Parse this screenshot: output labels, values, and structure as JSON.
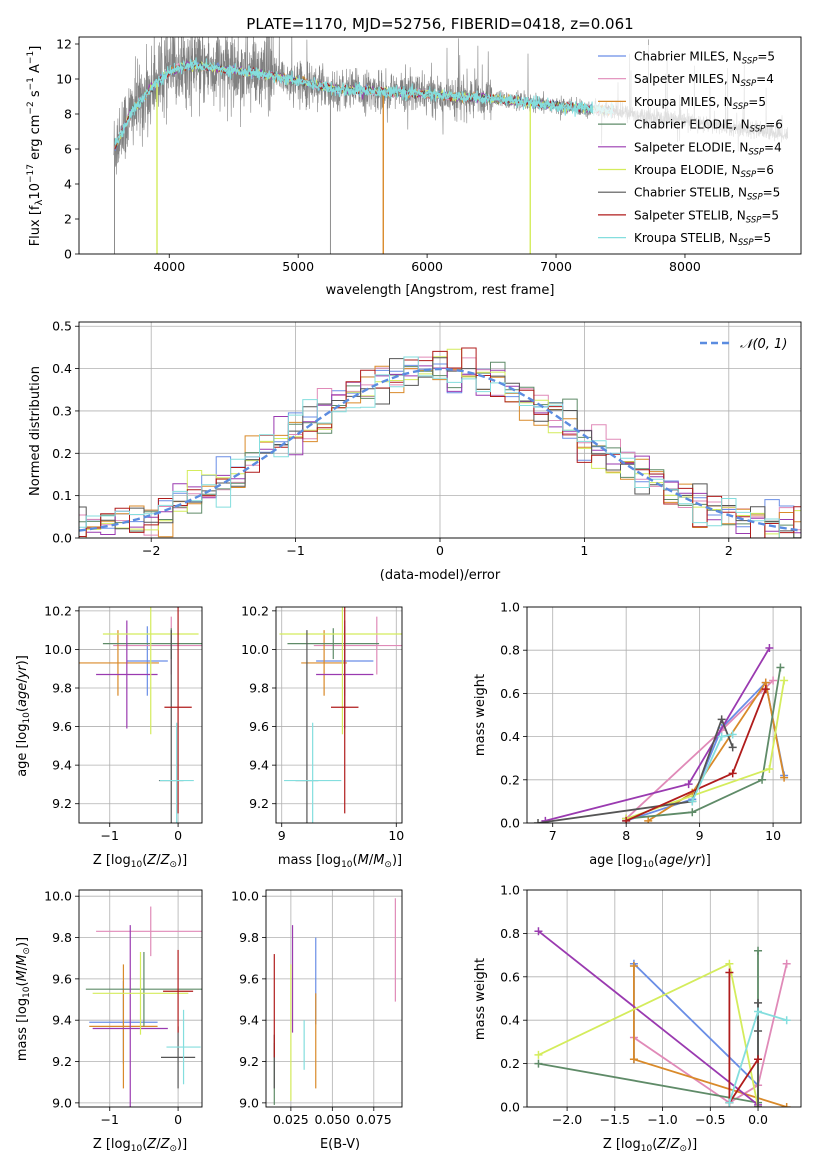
{
  "colors": [
    "#6a8ee6",
    "#e08ab8",
    "#d98a2a",
    "#5f8b68",
    "#9a3ab0",
    "#d4ec5c",
    "#555555",
    "#b01c1c",
    "#84dede"
  ],
  "chart_data": [
    {
      "id": "spectrum",
      "type": "line",
      "title": "PLATE=1170, MJD=52756, FIBERID=0418, z=0.061",
      "xlabel": "wavelength [Angstrom, rest frame]",
      "ylabel": "Flux [f_λ10^-17 erg cm^-2 s^-1 A^-1]",
      "xlim": [
        3300,
        8900
      ],
      "ylim": [
        0,
        12.4
      ],
      "xticks": [
        4000,
        5000,
        6000,
        7000,
        8000
      ],
      "yticks": [
        0,
        2,
        4,
        6,
        8,
        10,
        12
      ],
      "grid": false,
      "legend_position": "top-right",
      "legend": [
        "Chabrier MILES, N_SSP=5",
        "Salpeter MILES, N_SSP=4",
        "Kroupa MILES, N_SSP=5",
        "Chabrier ELODIE, N_SSP=6",
        "Salpeter ELODIE, N_SSP=4",
        "Kroupa ELODIE, N_SSP=6",
        "Chabrier STELIB, N_SSP=5",
        "Salpeter STELIB, N_SSP=5",
        "Kroupa STELIB, N_SSP=5"
      ],
      "data_range_x": [
        3570,
        8800
      ],
      "model_continuum": {
        "x": [
          3570,
          3700,
          3850,
          4000,
          4150,
          4400,
          4700,
          5000,
          5300,
          5600,
          5900,
          6200,
          6500,
          6800,
          7100,
          7400,
          7600,
          7800,
          8000,
          8200,
          8400,
          8600,
          8800
        ],
        "y": [
          6.0,
          8.0,
          9.4,
          10.4,
          10.8,
          10.6,
          10.3,
          9.9,
          9.4,
          9.3,
          9.2,
          9.0,
          8.9,
          8.6,
          8.4,
          8.2,
          8.0,
          7.8,
          7.6,
          7.4,
          7.2,
          7.0,
          6.8
        ]
      }
    },
    {
      "id": "residuals",
      "type": "line",
      "xlabel": "(data-model)/error",
      "ylabel": "Normed distribution",
      "xlim": [
        -2.5,
        2.5
      ],
      "ylim": [
        0,
        0.51
      ],
      "xticks": [
        -2,
        -1,
        0,
        1,
        2
      ],
      "yticks": [
        0.0,
        0.1,
        0.2,
        0.3,
        0.4,
        0.5
      ],
      "grid": true,
      "legend": [
        "𝒩(0, 1)"
      ],
      "legend_position": "top-right",
      "bin_width": 0.1
    },
    {
      "id": "age_vs_Z",
      "type": "scatter",
      "xlabel": "Z [log10(Z/Z⊙)]",
      "ylabel": "age  [log10(age/yr)]",
      "xlim": [
        -1.45,
        0.35
      ],
      "ylim": [
        9.1,
        10.22
      ],
      "xticks": [
        -1,
        0
      ],
      "yticks": [
        9.2,
        9.4,
        9.6,
        9.8,
        10.0,
        10.2
      ],
      "grid": true,
      "points": [
        {
          "x": -0.45,
          "y": 9.94,
          "xerr": 0.3,
          "yerr": 0.18
        },
        {
          "x": -0.1,
          "y": 10.02,
          "xerr": 0.85,
          "yerr": 0.15
        },
        {
          "x": -0.88,
          "y": 9.93,
          "xerr": 0.6,
          "yerr": 0.17
        },
        {
          "x": -0.1,
          "y": 10.03,
          "xerr": 1.0,
          "yerr": 0.08
        },
        {
          "x": -0.75,
          "y": 9.87,
          "xerr": 0.45,
          "yerr": 0.28
        },
        {
          "x": -0.4,
          "y": 10.08,
          "xerr": 0.7,
          "yerr": 0.52
        },
        {
          "x": -0.1,
          "y": 9.32,
          "xerr": 0.18,
          "yerr": 0.78
        },
        {
          "x": 0.0,
          "y": 9.7,
          "xerr": 0.2,
          "yerr": 0.55
        },
        {
          "x": -0.02,
          "y": 9.32,
          "xerr": 0.25,
          "yerr": 0.3
        }
      ]
    },
    {
      "id": "age_vs_mass",
      "type": "scatter",
      "xlabel": "mass [log10(M/M⊙)]",
      "ylabel": "",
      "xlim": [
        8.95,
        10.05
      ],
      "ylim": [
        9.1,
        10.22
      ],
      "xticks": [
        9,
        10
      ],
      "yticks": [
        9.2,
        9.4,
        9.6,
        9.8,
        10.0,
        10.2
      ],
      "grid": true,
      "points": [
        {
          "x": 9.55,
          "y": 9.94,
          "xerr": 0.25,
          "yerr": 0.18
        },
        {
          "x": 9.83,
          "y": 10.02,
          "xerr": 0.55,
          "yerr": 0.15
        },
        {
          "x": 9.37,
          "y": 9.93,
          "xerr": 0.2,
          "yerr": 0.17
        },
        {
          "x": 9.45,
          "y": 10.03,
          "xerr": 0.4,
          "yerr": 0.08
        },
        {
          "x": 9.55,
          "y": 9.87,
          "xerr": 0.25,
          "yerr": 0.28
        },
        {
          "x": 9.53,
          "y": 10.08,
          "xerr": 0.55,
          "yerr": 0.52
        },
        {
          "x": 9.22,
          "y": 9.32,
          "xerr": 0.1,
          "yerr": 0.78
        },
        {
          "x": 9.55,
          "y": 9.7,
          "xerr": 0.12,
          "yerr": 0.55
        },
        {
          "x": 9.27,
          "y": 9.32,
          "xerr": 0.25,
          "yerr": 0.3
        }
      ]
    },
    {
      "id": "mass_weight_vs_age",
      "type": "line",
      "xlabel": "age  [log10(age/yr)]",
      "ylabel": "mass weight",
      "xlim": [
        6.65,
        10.38
      ],
      "ylim": [
        0,
        1
      ],
      "xticks": [
        7,
        8,
        9,
        10
      ],
      "yticks": [
        0.0,
        0.2,
        0.4,
        0.6,
        0.8,
        1.0
      ],
      "grid": true,
      "series": [
        {
          "x": [
            8.0,
            8.9,
            9.3,
            9.9,
            10.15
          ],
          "y": [
            0.01,
            0.11,
            0.44,
            0.65,
            0.22
          ]
        },
        {
          "x": [
            8.0,
            9.3,
            10.0
          ],
          "y": [
            0.02,
            0.43,
            0.66
          ]
        },
        {
          "x": [
            8.3,
            8.9,
            9.9,
            10.15
          ],
          "y": [
            0.01,
            0.14,
            0.65,
            0.21
          ]
        },
        {
          "x": [
            8.0,
            8.9,
            9.85,
            10.1
          ],
          "y": [
            0.02,
            0.05,
            0.2,
            0.72
          ]
        },
        {
          "x": [
            6.9,
            8.85,
            9.95
          ],
          "y": [
            0.01,
            0.18,
            0.81
          ]
        },
        {
          "x": [
            8.0,
            9.95,
            10.15
          ],
          "y": [
            0.02,
            0.25,
            0.66
          ]
        },
        {
          "x": [
            6.8,
            8.9,
            9.3,
            9.45
          ],
          "y": [
            0.0,
            0.1,
            0.48,
            0.35
          ]
        },
        {
          "x": [
            8.0,
            9.45,
            9.9
          ],
          "y": [
            0.01,
            0.23,
            0.62
          ]
        },
        {
          "x": [
            8.9,
            9.3,
            9.45
          ],
          "y": [
            0.1,
            0.4,
            0.41
          ]
        }
      ]
    },
    {
      "id": "mass_vs_Z",
      "type": "scatter",
      "xlabel": "Z [log10(Z/Z⊙)]",
      "ylabel": "mass [log10(M/M⊙)]",
      "xlim": [
        -1.45,
        0.35
      ],
      "ylim": [
        8.98,
        10.03
      ],
      "xticks": [
        -1,
        0
      ],
      "yticks": [
        9.0,
        9.2,
        9.4,
        9.6,
        9.8,
        10.0
      ],
      "grid": true,
      "points": [
        {
          "x": -0.8,
          "y": 9.39,
          "xerr": 0.5,
          "yerr": 0.2
        },
        {
          "x": -0.4,
          "y": 9.83,
          "xerr": 0.8,
          "yerr": 0.12
        },
        {
          "x": -0.8,
          "y": 9.37,
          "xerr": 0.5,
          "yerr": 0.3
        },
        {
          "x": -0.5,
          "y": 9.55,
          "xerr": 0.85,
          "yerr": 0.18
        },
        {
          "x": -0.7,
          "y": 9.36,
          "xerr": 0.55,
          "yerr": 0.5
        },
        {
          "x": -0.55,
          "y": 9.53,
          "xerr": 0.7,
          "yerr": 0.2
        },
        {
          "x": 0.0,
          "y": 9.22,
          "xerr": 0.25,
          "yerr": 0.15
        },
        {
          "x": 0.0,
          "y": 9.54,
          "xerr": 0.22,
          "yerr": 0.2
        },
        {
          "x": 0.08,
          "y": 9.27,
          "xerr": 0.25,
          "yerr": 0.18
        }
      ]
    },
    {
      "id": "mass_vs_EBV",
      "type": "scatter",
      "xlabel": "E(B-V)",
      "ylabel": "",
      "xlim": [
        0.01,
        0.092
      ],
      "ylim": [
        8.98,
        10.03
      ],
      "xticks": [
        0.025,
        0.05,
        0.075
      ],
      "xticklabels": [
        "0.025",
        "0.050",
        "0.075"
      ],
      "yticks": [
        9.0,
        9.2,
        9.4,
        9.6,
        9.8,
        10.0
      ],
      "grid": true,
      "points": [
        {
          "x": 0.04,
          "y": 9.59,
          "xerr": 0.0,
          "yerr": 0.21
        },
        {
          "x": 0.088,
          "y": 9.74,
          "xerr": 0.0,
          "yerr": 0.25
        },
        {
          "x": 0.04,
          "y": 9.3,
          "xerr": 0.0,
          "yerr": 0.23
        },
        {
          "x": 0.015,
          "y": 9.14,
          "xerr": 0.0,
          "yerr": 0.15
        },
        {
          "x": 0.026,
          "y": 9.6,
          "xerr": 0.0,
          "yerr": 0.26
        },
        {
          "x": 0.025,
          "y": 9.34,
          "xerr": 0.0,
          "yerr": 0.33
        },
        {
          "x": 0.015,
          "y": 9.2,
          "xerr": 0.0,
          "yerr": 0.13
        },
        {
          "x": 0.015,
          "y": 9.47,
          "xerr": 0.0,
          "yerr": 0.25
        },
        {
          "x": 0.033,
          "y": 9.28,
          "xerr": 0.0,
          "yerr": 0.12
        }
      ]
    },
    {
      "id": "mass_weight_vs_Z",
      "type": "line",
      "xlabel": "Z [log10(Z/Z⊙)]",
      "ylabel": "mass weight",
      "xlim": [
        -2.42,
        0.45
      ],
      "ylim": [
        0,
        1
      ],
      "xticks": [
        -2.0,
        -1.5,
        -1.0,
        -0.5,
        0.0
      ],
      "xticklabels": [
        "−2.0",
        "−1.5",
        "−1.0",
        "−0.5",
        "0.0"
      ],
      "yticks": [
        0.0,
        0.2,
        0.4,
        0.6,
        0.8,
        1.0
      ],
      "grid": true,
      "series": [
        {
          "x": [
            -1.3,
            -1.3,
            0.0,
            0.0
          ],
          "y": [
            0.22,
            0.66,
            0.1,
            0.0
          ]
        },
        {
          "x": [
            -1.3,
            -0.3,
            0.0,
            0.3
          ],
          "y": [
            0.32,
            0.02,
            0.1,
            0.66
          ]
        },
        {
          "x": [
            -1.3,
            -1.3,
            0.3
          ],
          "y": [
            0.65,
            0.22,
            0.0
          ]
        },
        {
          "x": [
            -2.3,
            0.0,
            0.0
          ],
          "y": [
            0.2,
            0.02,
            0.72
          ]
        },
        {
          "x": [
            -2.3,
            0.0
          ],
          "y": [
            0.81,
            0.01
          ]
        },
        {
          "x": [
            -2.3,
            -0.3,
            0.0
          ],
          "y": [
            0.24,
            0.66,
            0.0
          ]
        },
        {
          "x": [
            0.0,
            0.0,
            0.0
          ],
          "y": [
            0.0,
            0.35,
            0.48
          ]
        },
        {
          "x": [
            -0.3,
            -0.3,
            0.0
          ],
          "y": [
            0.62,
            0.02,
            0.22
          ]
        },
        {
          "x": [
            -0.3,
            0.0,
            0.3
          ],
          "y": [
            0.02,
            0.44,
            0.4
          ]
        }
      ]
    }
  ]
}
